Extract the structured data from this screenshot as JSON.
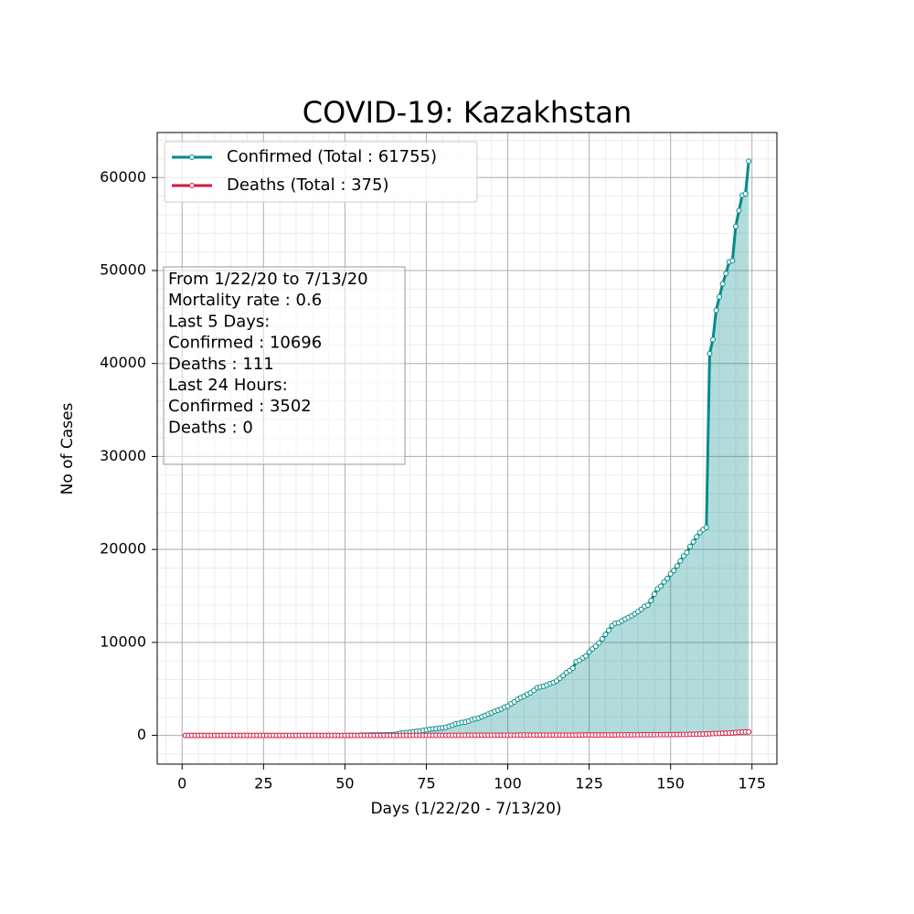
{
  "chart_data": {
    "type": "line",
    "title": "COVID-19: Kazakhstan",
    "x_label": "Days (1/22/20 - 7/13/20)",
    "y_label": "No of Cases",
    "x": [
      1,
      2,
      3,
      4,
      5,
      6,
      7,
      8,
      9,
      10,
      11,
      12,
      13,
      14,
      15,
      16,
      17,
      18,
      19,
      20,
      21,
      22,
      23,
      24,
      25,
      26,
      27,
      28,
      29,
      30,
      31,
      32,
      33,
      34,
      35,
      36,
      37,
      38,
      39,
      40,
      41,
      42,
      43,
      44,
      45,
      46,
      47,
      48,
      49,
      50,
      51,
      52,
      53,
      54,
      55,
      56,
      57,
      58,
      59,
      60,
      61,
      62,
      63,
      64,
      65,
      66,
      67,
      68,
      69,
      70,
      71,
      72,
      73,
      74,
      75,
      76,
      77,
      78,
      79,
      80,
      81,
      82,
      83,
      84,
      85,
      86,
      87,
      88,
      89,
      90,
      91,
      92,
      93,
      94,
      95,
      96,
      97,
      98,
      99,
      100,
      101,
      102,
      103,
      104,
      105,
      106,
      107,
      108,
      109,
      110,
      111,
      112,
      113,
      114,
      115,
      116,
      117,
      118,
      119,
      120,
      121,
      122,
      123,
      124,
      125,
      126,
      127,
      128,
      129,
      130,
      131,
      132,
      133,
      134,
      135,
      136,
      137,
      138,
      139,
      140,
      141,
      142,
      143,
      144,
      145,
      146,
      147,
      148,
      149,
      150,
      151,
      152,
      153,
      154,
      155,
      156,
      157,
      158,
      159,
      160,
      161,
      162,
      163,
      164,
      165,
      166,
      167,
      168,
      169,
      170,
      171,
      172,
      173,
      174
    ],
    "series": [
      {
        "name": "Confirmed (Total : 61755)",
        "color": "#008b8b",
        "fill": true,
        "values": [
          0,
          0,
          0,
          0,
          0,
          0,
          0,
          0,
          0,
          0,
          0,
          0,
          0,
          0,
          0,
          0,
          0,
          0,
          0,
          0,
          0,
          0,
          0,
          0,
          0,
          0,
          0,
          0,
          0,
          0,
          0,
          0,
          0,
          0,
          0,
          0,
          0,
          0,
          0,
          0,
          0,
          0,
          0,
          0,
          0,
          0,
          0,
          0,
          0,
          0,
          0,
          6,
          9,
          10,
          33,
          35,
          35,
          53,
          54,
          60,
          60,
          62,
          72,
          81,
          111,
          150,
          228,
          284,
          302,
          343,
          380,
          435,
          464,
          531,
          584,
          662,
          697,
          727,
          781,
          812,
          865,
          990,
          1091,
          1232,
          1295,
          1402,
          1435,
          1546,
          1676,
          1775,
          1852,
          1995,
          2135,
          2289,
          2417,
          2601,
          2717,
          2835,
          3027,
          3138,
          3402,
          3597,
          3877,
          4049,
          4205,
          4422,
          4578,
          4834,
          5126,
          5207,
          5279,
          5417,
          5571,
          5689,
          5850,
          6157,
          6440,
          6751,
          6969,
          7234,
          7919,
          8069,
          8322,
          8531,
          8969,
          9304,
          9576,
          9932,
          10382,
          10858,
          11308,
          11796,
          12067,
          12113,
          12312,
          12511,
          12684,
          12859,
          13072,
          13319,
          13558,
          13872,
          14008,
          14496,
          15192,
          15747,
          16048,
          16506,
          16878,
          17372,
          17732,
          18231,
          18765,
          19285,
          19673,
          20319,
          20812,
          21364,
          21819,
          22140,
          22356,
          41065,
          42574,
          45726,
          47172,
          48574,
          49683,
          50931,
          51059,
          54747,
          56455,
          58095,
          58253,
          61755
        ]
      },
      {
        "name": "Deaths (Total : 375)",
        "color": "#dc143c",
        "fill": false,
        "values": [
          0,
          0,
          0,
          0,
          0,
          0,
          0,
          0,
          0,
          0,
          0,
          0,
          0,
          0,
          0,
          0,
          0,
          0,
          0,
          0,
          0,
          0,
          0,
          0,
          0,
          0,
          0,
          0,
          0,
          0,
          0,
          0,
          0,
          0,
          0,
          0,
          0,
          0,
          0,
          0,
          0,
          0,
          0,
          0,
          0,
          0,
          0,
          0,
          0,
          0,
          0,
          0,
          0,
          0,
          0,
          0,
          0,
          0,
          0,
          0,
          0,
          0,
          0,
          0,
          1,
          1,
          1,
          1,
          1,
          2,
          3,
          3,
          5,
          5,
          6,
          6,
          6,
          7,
          7,
          10,
          10,
          10,
          10,
          10,
          12,
          14,
          14,
          17,
          19,
          19,
          19,
          19,
          19,
          19,
          25,
          25,
          25,
          25,
          25,
          25,
          25,
          27,
          30,
          31,
          31,
          31,
          31,
          32,
          32,
          34,
          34,
          34,
          35,
          35,
          35,
          35,
          35,
          36,
          37,
          37,
          37,
          37,
          38,
          40,
          40,
          41,
          42,
          43,
          44,
          46,
          48,
          48,
          50,
          53,
          55,
          56,
          58,
          60,
          62,
          64,
          66,
          68,
          70,
          73,
          75,
          76,
          78,
          80,
          85,
          88,
          92,
          97,
          100,
          105,
          110,
          115,
          120,
          128,
          136,
          145,
          160,
          170,
          188,
          200,
          222,
          230,
          245,
          250,
          264,
          300,
          340,
          360,
          375,
          375
        ]
      }
    ],
    "xlim": [
      -7.65,
      182.65
    ],
    "ylim": [
      -3088,
      64843
    ],
    "xticks": [
      0,
      25,
      50,
      75,
      100,
      125,
      150,
      175
    ],
    "yticks": [
      0,
      10000,
      20000,
      30000,
      40000,
      50000,
      60000
    ],
    "xminor_ticks": [
      -5,
      0,
      5,
      10,
      15,
      20,
      25,
      30,
      35,
      40,
      45,
      50,
      55,
      60,
      65,
      70,
      75,
      80,
      85,
      90,
      95,
      100,
      105,
      110,
      115,
      120,
      125,
      130,
      135,
      140,
      145,
      150,
      155,
      160,
      165,
      170,
      175,
      180
    ],
    "yminor_ticks": [
      -2000,
      0,
      2000,
      4000,
      6000,
      8000,
      10000,
      12000,
      14000,
      16000,
      18000,
      20000,
      22000,
      24000,
      26000,
      28000,
      30000,
      32000,
      34000,
      36000,
      38000,
      40000,
      42000,
      44000,
      46000,
      48000,
      50000,
      52000,
      54000,
      56000,
      58000,
      60000,
      62000,
      64000
    ],
    "grid": true,
    "minor_grid": true,
    "legend": "upper left",
    "annotation_lines": [
      "From 1/22/20 to 7/13/20",
      "Mortality rate : 0.6",
      "Last 5 Days:",
      "Confirmed : 10696",
      "Deaths : 111",
      "Last 24 Hours:",
      "Confirmed : 3502",
      "Deaths : 0"
    ]
  }
}
